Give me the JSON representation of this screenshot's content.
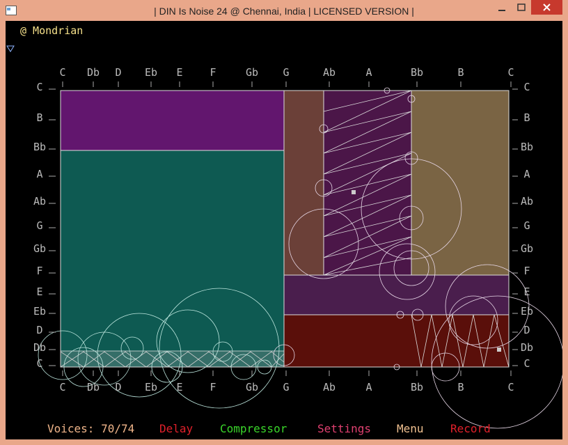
{
  "window": {
    "title": "| DIN Is Noise 24 @ Chennai, India | LICENSED VERSION |"
  },
  "instrument": {
    "name": "@ Mondrian"
  },
  "notes": [
    "C",
    "Db",
    "D",
    "Eb",
    "E",
    "F",
    "Gb",
    "G",
    "Ab",
    "A",
    "Bb",
    "B",
    "C"
  ],
  "status": {
    "voices": "Voices: 70/74",
    "delay": "Delay",
    "compressor": "Compressor",
    "settings": "Settings",
    "menu": "Menu",
    "record": "Record"
  }
}
